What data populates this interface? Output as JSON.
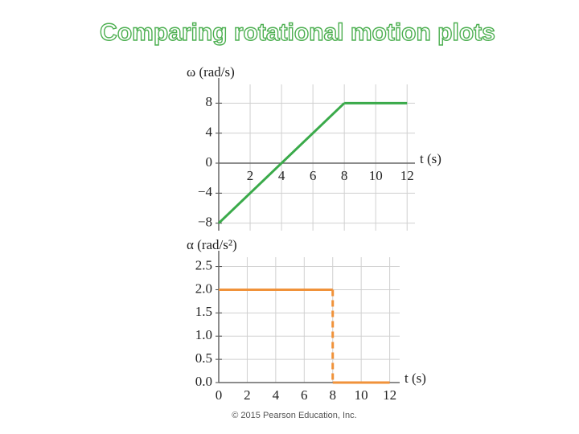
{
  "title": "Comparing rotational motion plots",
  "footer": "© 2015 Pearson Education, Inc.",
  "chart_data": [
    {
      "type": "line",
      "y_label": "ω (rad/s)",
      "x_label": "t (s)",
      "x": [
        0,
        8,
        12
      ],
      "values": [
        -8,
        8,
        8
      ],
      "color": "#3aaa4a",
      "xlim": [
        0,
        12.5
      ],
      "ylim": [
        -9,
        10.5
      ],
      "xticks": [
        2,
        4,
        6,
        8,
        10,
        12
      ],
      "yticks": [
        {
          "value": -8,
          "label": "−8"
        },
        {
          "value": -4,
          "label": "−4"
        },
        0,
        4,
        8
      ],
      "grid": true
    },
    {
      "type": "line",
      "y_label": "α (rad/s²)",
      "x_label": "t (s)",
      "x": [
        0,
        8,
        8,
        12
      ],
      "values": [
        2,
        2,
        0,
        0
      ],
      "color": "#f0923a",
      "xlim": [
        0,
        12.7
      ],
      "ylim": [
        0,
        2.7
      ],
      "xticks": [
        0,
        2,
        4,
        6,
        8,
        10,
        12
      ],
      "yticks": [
        {
          "value": 0,
          "label": "0.0"
        },
        {
          "value": 0.5,
          "label": "0.5"
        },
        {
          "value": 1,
          "label": "1.0"
        },
        {
          "value": 1.5,
          "label": "1.5"
        },
        {
          "value": 2,
          "label": "2.0"
        },
        {
          "value": 2.5,
          "label": "2.5"
        }
      ],
      "grid": true
    }
  ]
}
